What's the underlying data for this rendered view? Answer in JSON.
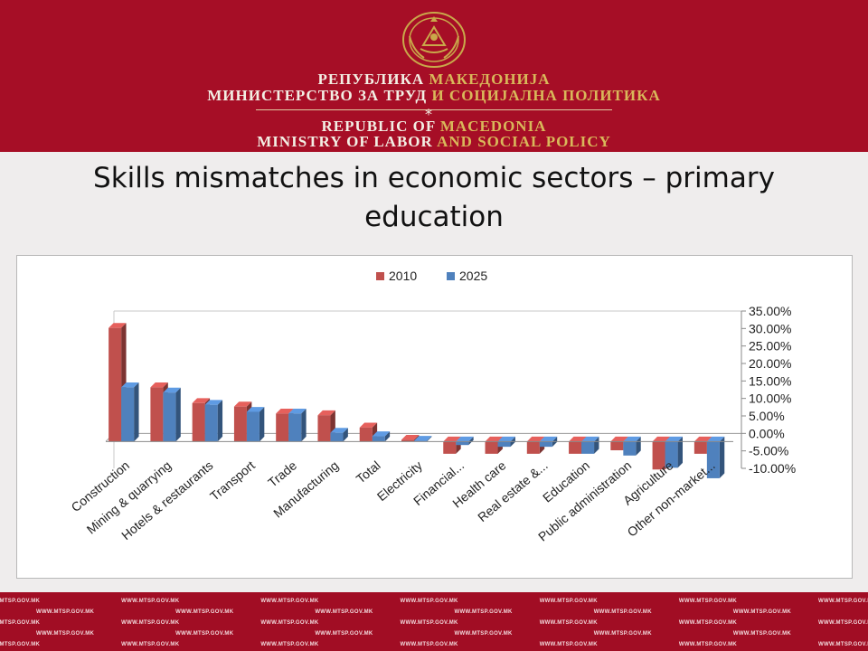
{
  "header": {
    "line1_a": "РЕПУБЛИКА ",
    "line1_b": "МАКЕДОНИЈА",
    "line2_a": "МИНИСТЕРСТВО ЗА ТРУД ",
    "line2_b": "И СОЦИЈАЛНА ПОЛИТИКА",
    "line3_a": "REPUBLIC OF ",
    "line3_b": "MACEDONIA",
    "line4_a": "MINISTRY OF LABOR ",
    "line4_b": "AND SOCIAL POLICY",
    "divider_glyph": "⁎"
  },
  "title": "Skills mismatches in economic sectors – primary education",
  "footer": {
    "url": "WWW.MTSP.GOV.MK"
  },
  "colors": {
    "header_bg": "#a60e26",
    "series_2010": "#c0504d",
    "series_2025": "#4f81bd"
  },
  "chart_data": {
    "type": "bar",
    "categories": [
      "Construction",
      "Mining & quarrying",
      "Hotels & restaurants",
      "Transport",
      "Trade",
      "Manufacturing",
      "Total",
      "Electricity",
      "Financial...",
      "Health care",
      "Real estate &...",
      "Education",
      "Public administration",
      "Agriculture",
      "Other non-market..."
    ],
    "series": [
      {
        "name": "2010",
        "values": [
          32.5,
          15.5,
          11.0,
          10.0,
          8.0,
          7.5,
          4.0,
          0.5,
          -3.5,
          -3.5,
          -3.5,
          -3.5,
          -2.5,
          -8.0,
          -3.5
        ]
      },
      {
        "name": "2025",
        "values": [
          15.5,
          14.0,
          10.5,
          8.5,
          8.0,
          2.5,
          1.5,
          0.2,
          -1.0,
          -1.5,
          -1.5,
          -3.5,
          -4.0,
          -7.5,
          -10.5
        ]
      }
    ],
    "ylim": [
      -10,
      35
    ],
    "yticks": [
      "35.00%",
      "30.00%",
      "25.00%",
      "20.00%",
      "15.00%",
      "10.00%",
      "5.00%",
      "0.00%",
      "-5.00%",
      "-10.00%"
    ],
    "ytick_values": [
      35,
      30,
      25,
      20,
      15,
      10,
      5,
      0,
      -5,
      -10
    ],
    "legend_position": "top-center",
    "grid": false,
    "style": "3d-clustered-columns"
  }
}
